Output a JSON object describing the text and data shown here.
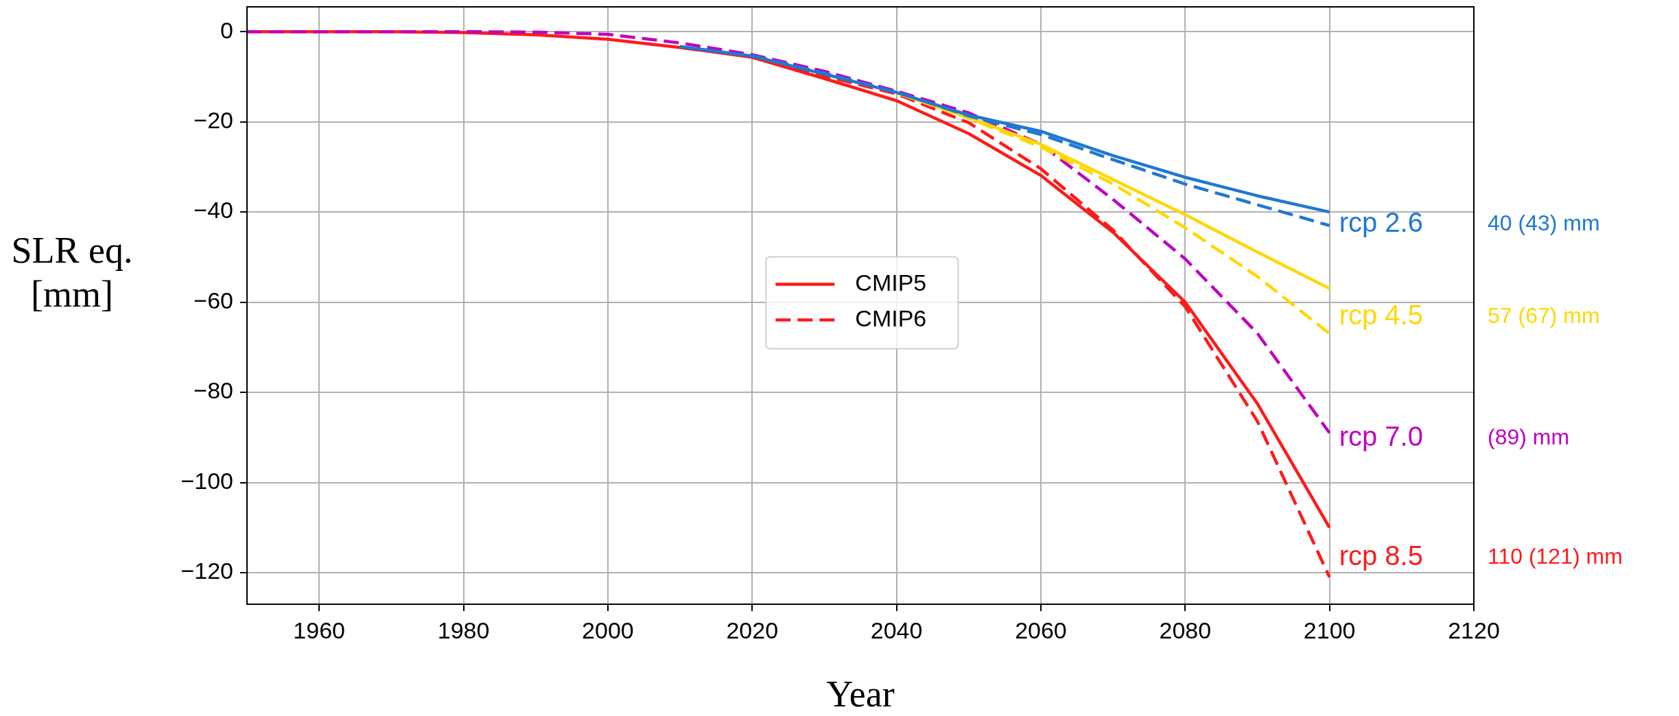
{
  "chart_data": {
    "type": "line",
    "xlabel": "Year",
    "ylabel": "SLR eq. [mm]",
    "x": [
      1950,
      1960,
      1970,
      1980,
      1990,
      2000,
      2010,
      2020,
      2030,
      2040,
      2050,
      2060,
      2070,
      2080,
      2090,
      2100
    ],
    "series": [
      {
        "color": "#1f78d1",
        "line_style": "solid",
        "values": [
          null,
          null,
          null,
          null,
          null,
          null,
          -3.3,
          -5.4,
          -9.4,
          -13.5,
          -18.5,
          -22.1,
          -27.5,
          -32.3,
          -36.4,
          -40
        ]
      },
      {
        "color": "#1f78d1",
        "line_style": "dashed",
        "values": [
          null,
          null,
          null,
          null,
          null,
          null,
          null,
          -5.3,
          -9.2,
          -13.4,
          -18.7,
          -22.8,
          -28.4,
          -33.8,
          -38.4,
          -43
        ]
      },
      {
        "color": "#ffd700",
        "line_style": "solid",
        "values": [
          null,
          null,
          null,
          null,
          null,
          null,
          null,
          null,
          null,
          -13.6,
          -19,
          -25,
          -32.8,
          -40.6,
          -48.9,
          -57
        ]
      },
      {
        "color": "#ffd700",
        "line_style": "dashed",
        "values": [
          null,
          null,
          null,
          null,
          null,
          null,
          null,
          null,
          null,
          -13.5,
          -19.2,
          -25.6,
          -33.8,
          -43.5,
          -54.3,
          -67
        ]
      },
      {
        "color": "#c000c0",
        "line_style": "dashed",
        "values": [
          0,
          0,
          0,
          0,
          -0.1,
          -0.6,
          -2.5,
          -5.1,
          -8.8,
          -13.2,
          -18,
          -25,
          -37.2,
          -50.4,
          -66.9,
          -89
        ]
      },
      {
        "name": "CMIP5",
        "color": "#ff1a1a",
        "line_style": "solid",
        "values": [
          0,
          0,
          0,
          -0.2,
          -0.7,
          -1.7,
          -3.5,
          -5.7,
          -10.4,
          -15.3,
          -22.6,
          -31.9,
          -44.5,
          -60,
          -82.5,
          -110
        ]
      },
      {
        "name": "CMIP6",
        "color": "#ff1a1a",
        "line_style": "dashed",
        "values": [
          null,
          null,
          null,
          null,
          null,
          null,
          null,
          -5.5,
          -9.8,
          -13.8,
          -20.2,
          -30.4,
          -44,
          -61,
          -86.4,
          -121
        ]
      }
    ],
    "xlim": [
      1950,
      2120
    ],
    "xticks": [
      1960,
      1980,
      2000,
      2020,
      2040,
      2060,
      2080,
      2100,
      2120
    ],
    "ylim": [
      -127,
      5.5
    ],
    "yticks": [
      {
        "value": -120,
        "label": "−120"
      },
      {
        "value": -100,
        "label": "−100"
      },
      {
        "value": -80,
        "label": "−80"
      },
      {
        "value": -60,
        "label": "−60"
      },
      {
        "value": -40,
        "label": "−40"
      },
      {
        "value": -20,
        "label": "−20"
      },
      0
    ],
    "grid": true,
    "legend": "center",
    "marker": "none",
    "annotations": [
      "rcp 2.6",
      "rcp 4.5",
      "rcp 7.0",
      "rcp 8.5",
      "40 (43) mm",
      "57 (67) mm",
      "(89) mm",
      "110 (121) mm"
    ]
  }
}
